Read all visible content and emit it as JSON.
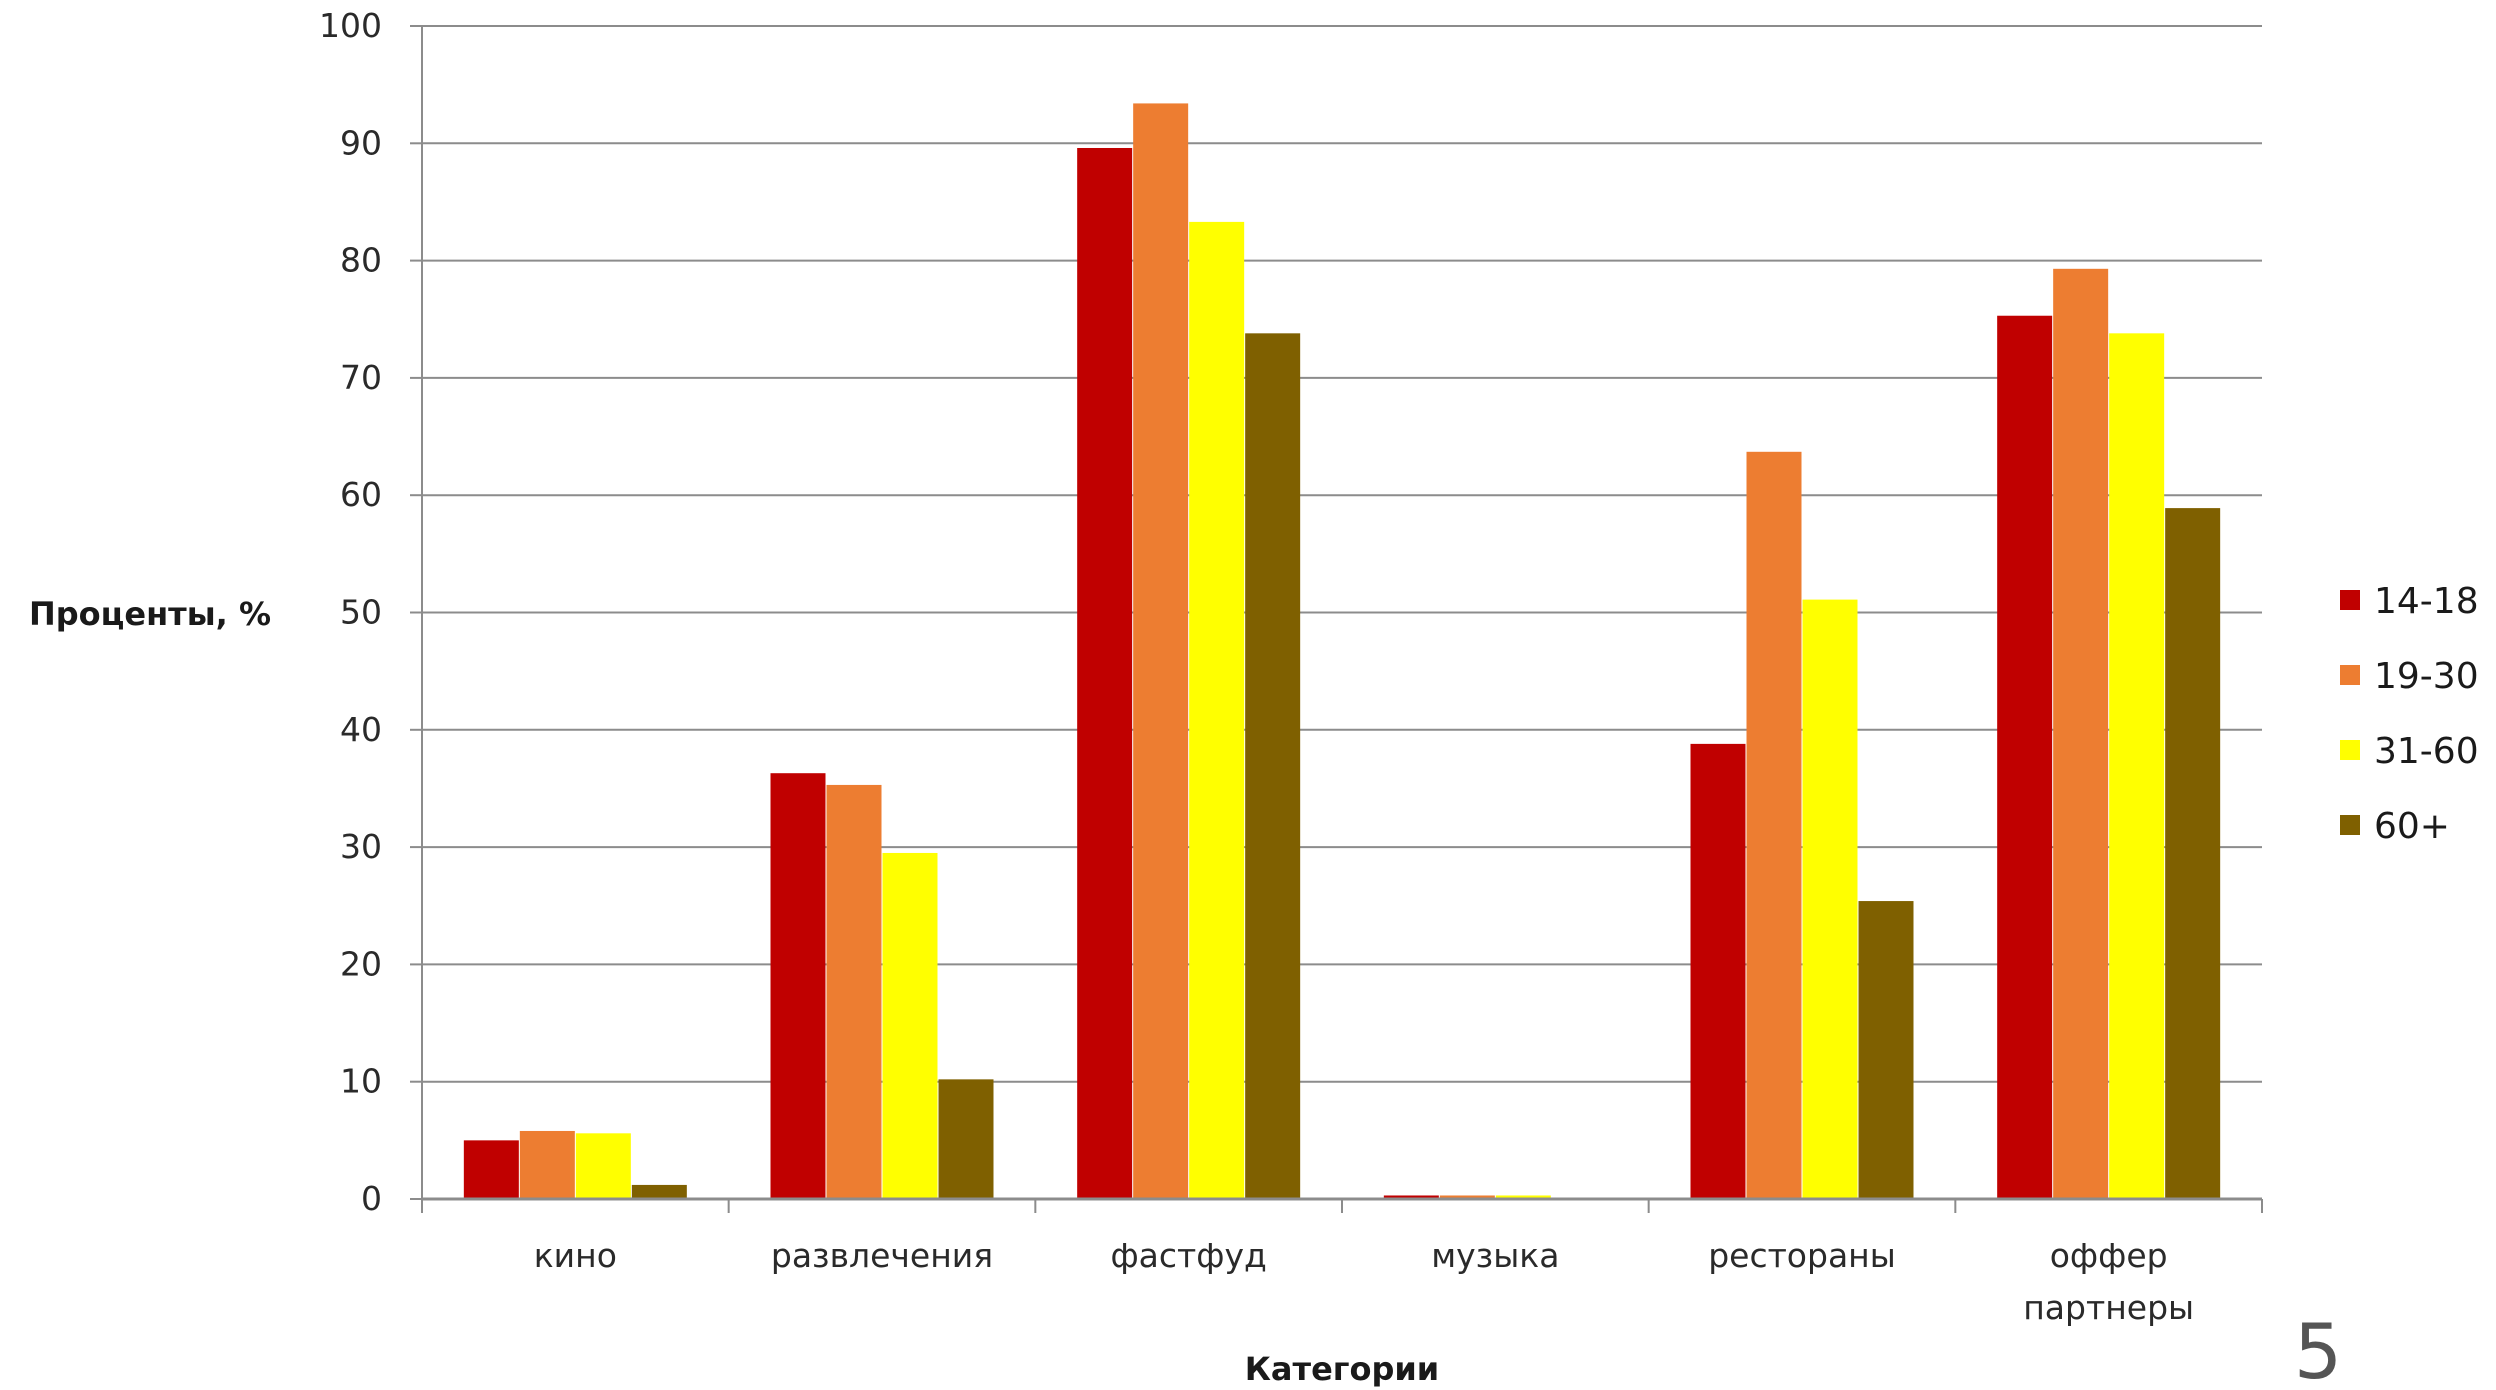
{
  "chart_data": {
    "type": "bar",
    "title": "",
    "xlabel": "Категории",
    "ylabel": "Проценты, %",
    "ylim": [
      0,
      100
    ],
    "yticks": [
      "0",
      "10",
      "20",
      "30",
      "40",
      "50",
      "60",
      "70",
      "80",
      "90",
      "100"
    ],
    "grid": true,
    "legend_position": "right",
    "categories": [
      [
        "кино"
      ],
      [
        "развлечения"
      ],
      [
        "фастфуд"
      ],
      [
        "музыка"
      ],
      [
        "рестораны"
      ],
      [
        "оффер",
        "партнеры"
      ]
    ],
    "series": [
      {
        "name": "14-18",
        "color": "#C00000",
        "values": [
          5,
          36.3,
          89.6,
          0.3,
          38.8,
          75.3
        ]
      },
      {
        "name": "19-30",
        "color": "#ED7D31",
        "values": [
          5.8,
          35.3,
          93.4,
          0.3,
          63.7,
          79.3
        ]
      },
      {
        "name": "31-60",
        "color": "#FFFF00",
        "values": [
          5.6,
          29.5,
          83.3,
          0.3,
          51.1,
          73.8
        ]
      },
      {
        "name": "60+",
        "color": "#7F6000",
        "values": [
          1.2,
          10.2,
          73.8,
          0,
          25.4,
          58.9
        ]
      }
    ]
  },
  "page_number": "5"
}
